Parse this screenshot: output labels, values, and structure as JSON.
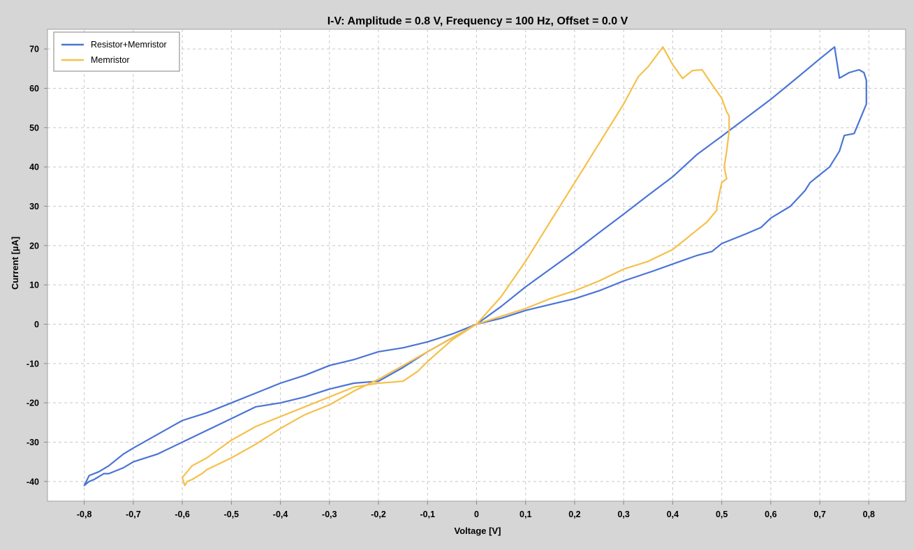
{
  "chart_data": {
    "type": "line",
    "title": "I-V: Amplitude = 0.8 V, Frequency = 100 Hz, Offset = 0.0 V",
    "xlabel": "Voltage [V]",
    "ylabel": "Current [µA]",
    "xlim": [
      -0.875,
      0.875
    ],
    "ylim": [
      -45,
      75
    ],
    "x_ticks": [
      -0.8,
      -0.7,
      -0.6,
      -0.5,
      -0.4,
      -0.3,
      -0.2,
      -0.1,
      0,
      0.1,
      0.2,
      0.3,
      0.4,
      0.5,
      0.6,
      0.7,
      0.8
    ],
    "x_tick_labels": [
      "-0,8",
      "-0,7",
      "-0,6",
      "-0,5",
      "-0,4",
      "-0,3",
      "-0,2",
      "-0,1",
      "0",
      "0,1",
      "0,2",
      "0,3",
      "0,4",
      "0,5",
      "0,6",
      "0,7",
      "0,8"
    ],
    "y_ticks": [
      -40,
      -30,
      -20,
      -10,
      0,
      10,
      20,
      30,
      40,
      50,
      60,
      70
    ],
    "y_tick_labels": [
      "-40",
      "-30",
      "-20",
      "-10",
      "0",
      "10",
      "20",
      "30",
      "40",
      "50",
      "60",
      "70"
    ],
    "grid": true,
    "legend_position": "top-left",
    "series": [
      {
        "name": "Resistor+Memristor",
        "color": "#4a74d6",
        "x": [
          0,
          0.05,
          0.1,
          0.15,
          0.2,
          0.25,
          0.3,
          0.35,
          0.4,
          0.45,
          0.5,
          0.55,
          0.6,
          0.65,
          0.7,
          0.73,
          0.74,
          0.76,
          0.78,
          0.79,
          0.795,
          0.795,
          0.78,
          0.77,
          0.75,
          0.74,
          0.72,
          0.7,
          0.68,
          0.67,
          0.64,
          0.6,
          0.58,
          0.55,
          0.5,
          0.48,
          0.45,
          0.4,
          0.36,
          0.3,
          0.25,
          0.2,
          0.15,
          0.1,
          0.05,
          0,
          -0.05,
          -0.1,
          -0.15,
          -0.2,
          -0.25,
          -0.3,
          -0.35,
          -0.4,
          -0.45,
          -0.5,
          -0.55,
          -0.6,
          -0.65,
          -0.7,
          -0.72,
          -0.75,
          -0.77,
          -0.79,
          -0.8,
          -0.79,
          -0.78,
          -0.76,
          -0.75,
          -0.72,
          -0.7,
          -0.65,
          -0.6,
          -0.55,
          -0.5,
          -0.45,
          -0.4,
          -0.35,
          -0.3,
          -0.25,
          -0.2,
          -0.15,
          -0.1,
          -0.05,
          0
        ],
        "y": [
          0,
          4.5,
          9.5,
          14,
          18.5,
          23.3,
          28,
          32.8,
          37.5,
          43.2,
          47.8,
          52.5,
          57.2,
          62.3,
          67.5,
          70.5,
          62.6,
          64,
          64.7,
          64,
          62,
          56,
          51.5,
          48.5,
          48,
          44,
          40,
          38,
          36,
          34,
          30,
          27,
          24.6,
          23,
          20.5,
          18.5,
          17.5,
          15.3,
          13.5,
          11,
          8.5,
          6.5,
          5,
          3.5,
          1.5,
          0,
          -2.5,
          -4.5,
          -6,
          -7,
          -9,
          -10.5,
          -13,
          -15,
          -17.5,
          -20,
          -22.5,
          -24.5,
          -28,
          -31.5,
          -33,
          -36,
          -37.5,
          -38.5,
          -41,
          -40,
          -39.5,
          -38,
          -38,
          -36.5,
          -35,
          -33,
          -30,
          -27,
          -24,
          -21,
          -20,
          -18.5,
          -16.5,
          -15,
          -14.5,
          -11,
          -7,
          -3.5,
          0
        ]
      },
      {
        "name": "Memristor",
        "color": "#f5c04a",
        "x": [
          0,
          0.05,
          0.1,
          0.15,
          0.2,
          0.25,
          0.3,
          0.33,
          0.35,
          0.38,
          0.4,
          0.42,
          0.44,
          0.46,
          0.48,
          0.5,
          0.51,
          0.515,
          0.515,
          0.51,
          0.505,
          0.51,
          0.5,
          0.49,
          0.49,
          0.47,
          0.45,
          0.43,
          0.4,
          0.35,
          0.3,
          0.25,
          0.2,
          0.15,
          0.1,
          0.05,
          0,
          -0.05,
          -0.1,
          -0.12,
          -0.15,
          -0.2,
          -0.25,
          -0.3,
          -0.35,
          -0.4,
          -0.45,
          -0.5,
          -0.55,
          -0.58,
          -0.6,
          -0.595,
          -0.59,
          -0.58,
          -0.56,
          -0.55,
          -0.5,
          -0.45,
          -0.4,
          -0.35,
          -0.3,
          -0.25,
          -0.2,
          -0.15,
          -0.1,
          -0.05,
          0
        ],
        "y": [
          0,
          7,
          16,
          26,
          36,
          46,
          56,
          63,
          65.5,
          70.5,
          66,
          62.5,
          64.5,
          64.7,
          61,
          57.5,
          54,
          53,
          49,
          44,
          40,
          37,
          36,
          30,
          29,
          26,
          24,
          22,
          19,
          16,
          14,
          11,
          8.5,
          6.5,
          4,
          2,
          0,
          -4,
          -9.5,
          -12,
          -14.5,
          -15,
          -16,
          -18.5,
          -21,
          -23.5,
          -26,
          -29.5,
          -34,
          -36,
          -39,
          -41,
          -40,
          -39.5,
          -38,
          -37,
          -34,
          -30.5,
          -26.5,
          -23,
          -20.5,
          -17,
          -14,
          -10.5,
          -7,
          -3.5,
          0
        ]
      }
    ]
  }
}
